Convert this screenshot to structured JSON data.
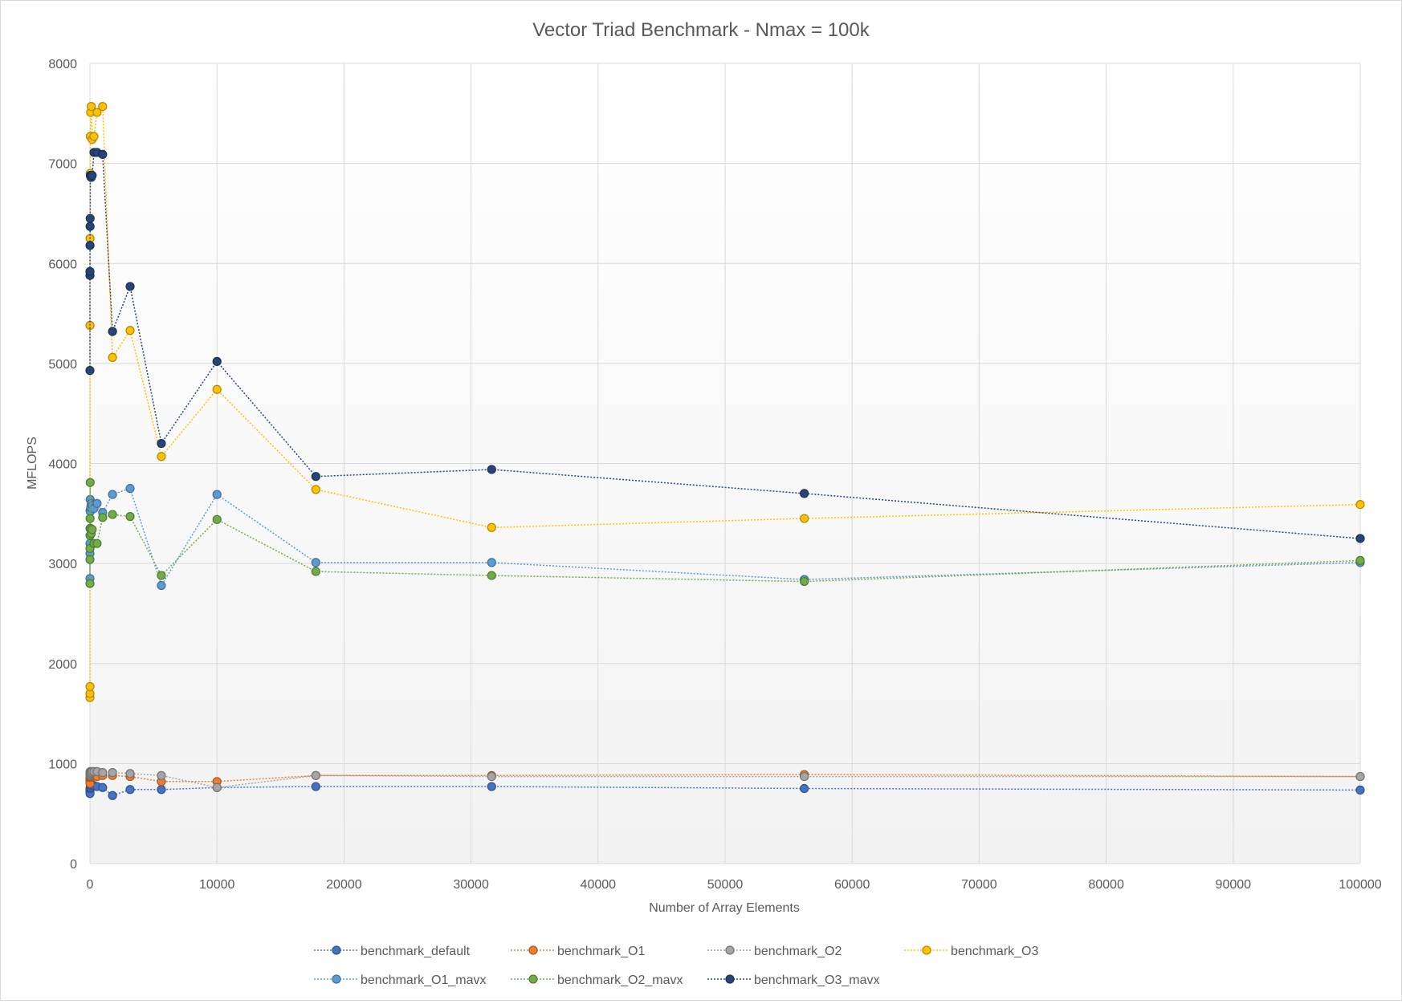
{
  "chart_data": {
    "type": "line",
    "title": "Vector Triad Benchmark - Nmax = 100k",
    "xlabel": "Number of Array Elements",
    "ylabel": "MFLOPS",
    "xlim": [
      0,
      100000
    ],
    "ylim": [
      0,
      8000
    ],
    "xticks": [
      0,
      10000,
      20000,
      30000,
      40000,
      50000,
      60000,
      70000,
      80000,
      90000,
      100000
    ],
    "yticks": [
      0,
      1000,
      2000,
      3000,
      4000,
      5000,
      6000,
      7000,
      8000
    ],
    "xtick_labels": [
      "0",
      "10000",
      "20000",
      "30000",
      "40000",
      "50000",
      "60000",
      "70000",
      "80000",
      "90000",
      "100000"
    ],
    "ytick_labels": [
      "0",
      "1000",
      "2000",
      "3000",
      "4000",
      "5000",
      "6000",
      "7000",
      "8000"
    ],
    "grid": true,
    "line_style": "dotted",
    "legend_position": "bottom",
    "x": [
      1,
      2,
      3,
      6,
      10,
      18,
      32,
      56,
      100,
      178,
      316,
      562,
      1000,
      1778,
      3162,
      5623,
      10000,
      17783,
      31623,
      56234,
      100000
    ],
    "series": [
      {
        "name": "benchmark_default",
        "color": "#4472c4",
        "values": [
          720,
          730,
          740,
          700,
          750,
          760,
          770,
          760,
          780,
          790,
          780,
          770,
          760,
          680,
          740,
          740,
          760,
          770,
          770,
          750,
          735
        ]
      },
      {
        "name": "benchmark_O1",
        "color": "#ed7d31",
        "values": [
          820,
          830,
          850,
          800,
          860,
          870,
          880,
          880,
          890,
          890,
          880,
          870,
          880,
          880,
          870,
          820,
          820,
          880,
          880,
          890,
          870
        ]
      },
      {
        "name": "benchmark_O2",
        "color": "#a5a5a5",
        "values": [
          880,
          900,
          910,
          890,
          910,
          920,
          910,
          900,
          910,
          920,
          920,
          920,
          910,
          910,
          900,
          880,
          760,
          880,
          870,
          870,
          870
        ]
      },
      {
        "name": "benchmark_O3",
        "color": "#ffc000",
        "values": [
          1660,
          1700,
          1770,
          5380,
          6250,
          6900,
          7270,
          7510,
          7570,
          7240,
          7270,
          7510,
          7570,
          5060,
          5330,
          4070,
          4740,
          3740,
          3360,
          3450,
          3590
        ]
      },
      {
        "name": "benchmark_O1_mavx",
        "color": "#5b9bd5",
        "values": [
          2850,
          3100,
          3200,
          3350,
          3530,
          3640,
          3520,
          3560,
          3600,
          3580,
          3550,
          3600,
          3510,
          3690,
          3750,
          2780,
          3690,
          3010,
          3010,
          2840,
          3010
        ]
      },
      {
        "name": "benchmark_O2_mavx",
        "color": "#70ad47",
        "values": [
          2800,
          3040,
          3150,
          3280,
          3450,
          3810,
          3350,
          3350,
          3300,
          3340,
          3200,
          3200,
          3460,
          3490,
          3470,
          2880,
          3440,
          2920,
          2880,
          2820,
          3030
        ]
      },
      {
        "name": "benchmark_O3_mavx",
        "color": "#264478",
        "values": [
          4930,
          5880,
          5920,
          6180,
          6370,
          6450,
          6880,
          6870,
          6860,
          6880,
          7110,
          7110,
          7090,
          5320,
          5770,
          4200,
          5020,
          3870,
          3940,
          3700,
          3250
        ]
      }
    ]
  }
}
